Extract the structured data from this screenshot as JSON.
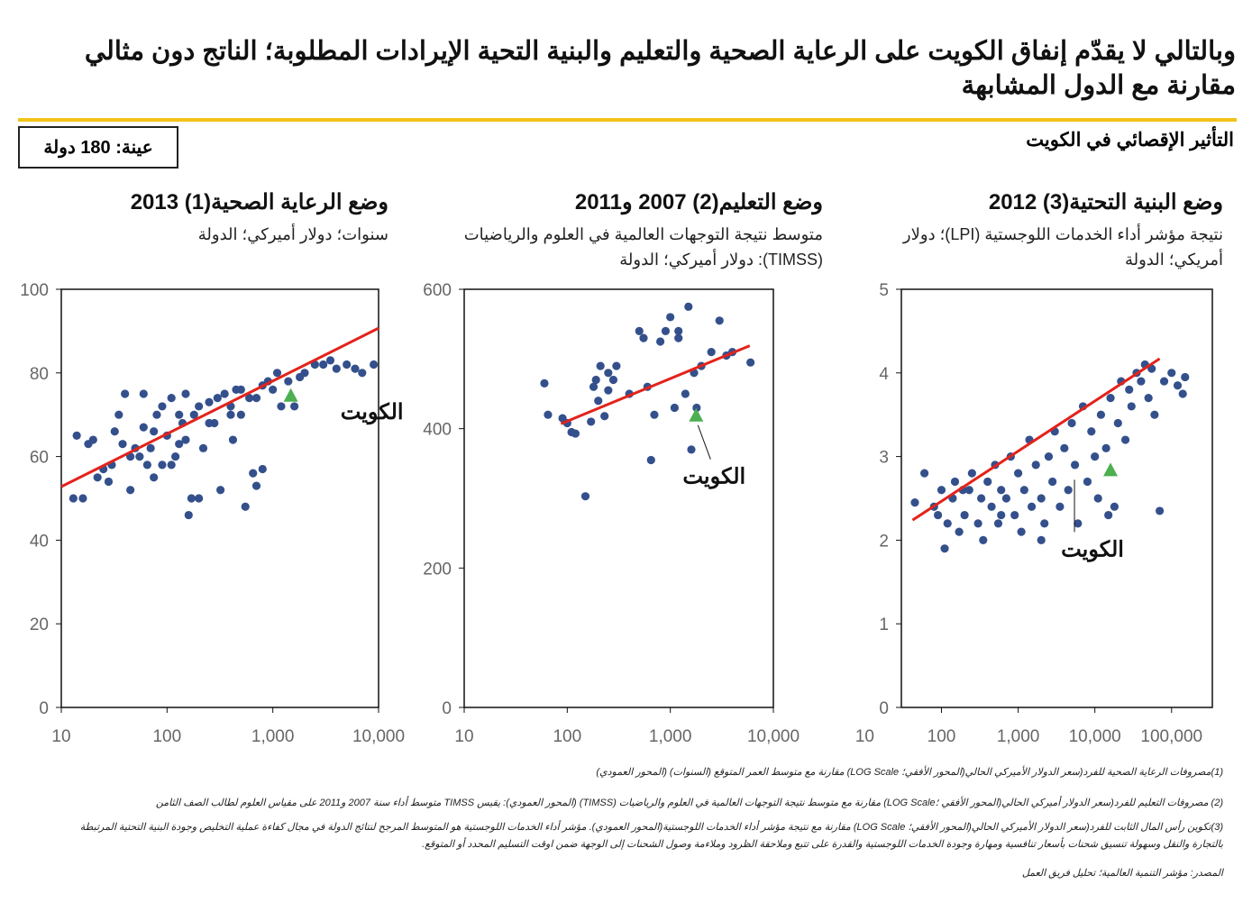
{
  "header": {
    "title": "وبالتالي لا يقدّم إنفاق الكويت على الرعاية الصحية والتعليم والبنية التحية الإيرادات المطلوبة؛ الناتج دون مثالي مقارنة مع الدول المشابهة",
    "sample": "عينة: 180 دولة",
    "section": "التأثير الإقصائي في الكويت"
  },
  "colors": {
    "accent": "#f2c318",
    "points": "#34508c",
    "trend": "#e3231b",
    "kuwait": "#4caf50"
  },
  "chart_data": [
    {
      "type": "scatter",
      "title": "وضع الرعاية الصحية(1)  2013",
      "subtitle": "سنوات؛ دولار أميركي؛ الدولة",
      "xscale": "log",
      "xlim": [
        10,
        10000
      ],
      "ylim": [
        0,
        100
      ],
      "xticks": [
        10,
        100,
        1000,
        10000
      ],
      "xtick_labels": [
        "10",
        "100",
        "1,000",
        "10,000"
      ],
      "yticks": [
        0,
        20,
        40,
        60,
        80,
        100
      ],
      "ytick_labels": [
        "0",
        "20",
        "40",
        "60",
        "80",
        "100"
      ],
      "trend": [
        [
          10,
          52.8
        ],
        [
          10000,
          90.7
        ]
      ],
      "kuwait": {
        "label": "الكويت",
        "x": 1480,
        "y": 74.4
      },
      "points": [
        [
          13,
          50
        ],
        [
          16,
          50
        ],
        [
          14,
          65
        ],
        [
          18,
          63
        ],
        [
          20,
          64
        ],
        [
          22,
          55
        ],
        [
          25,
          57
        ],
        [
          30,
          58
        ],
        [
          32,
          66
        ],
        [
          35,
          70
        ],
        [
          38,
          63
        ],
        [
          40,
          75
        ],
        [
          45,
          52
        ],
        [
          50,
          62
        ],
        [
          55,
          60
        ],
        [
          60,
          67
        ],
        [
          65,
          58
        ],
        [
          70,
          62
        ],
        [
          75,
          55
        ],
        [
          80,
          70
        ],
        [
          90,
          72
        ],
        [
          100,
          65
        ],
        [
          110,
          74
        ],
        [
          120,
          60
        ],
        [
          130,
          63
        ],
        [
          140,
          68
        ],
        [
          150,
          75
        ],
        [
          160,
          46
        ],
        [
          170,
          50
        ],
        [
          180,
          70
        ],
        [
          200,
          72
        ],
        [
          220,
          62
        ],
        [
          250,
          73
        ],
        [
          280,
          68
        ],
        [
          300,
          74
        ],
        [
          320,
          52
        ],
        [
          350,
          75
        ],
        [
          400,
          72
        ],
        [
          420,
          64
        ],
        [
          450,
          76
        ],
        [
          500,
          70
        ],
        [
          550,
          48
        ],
        [
          600,
          74
        ],
        [
          650,
          56
        ],
        [
          700,
          74
        ],
        [
          800,
          57
        ],
        [
          900,
          78
        ],
        [
          1000,
          76
        ],
        [
          1100,
          80
        ],
        [
          1200,
          72
        ],
        [
          1400,
          78
        ],
        [
          1600,
          72
        ],
        [
          1800,
          79
        ],
        [
          2000,
          80
        ],
        [
          2500,
          82
        ],
        [
          3000,
          82
        ],
        [
          3500,
          83
        ],
        [
          4000,
          81
        ],
        [
          5000,
          82
        ],
        [
          6000,
          81
        ],
        [
          7000,
          80
        ],
        [
          9000,
          82
        ],
        [
          200,
          50
        ],
        [
          110,
          58
        ],
        [
          60,
          75
        ],
        [
          700,
          53
        ],
        [
          130,
          70
        ],
        [
          250,
          68
        ],
        [
          400,
          70
        ],
        [
          90,
          58
        ],
        [
          75,
          66
        ],
        [
          150,
          64
        ],
        [
          45,
          60
        ],
        [
          28,
          54
        ],
        [
          500,
          76
        ],
        [
          800,
          77
        ]
      ]
    },
    {
      "type": "scatter",
      "title": "وضع التعليم(2)  2007 و2011",
      "subtitle": "متوسط نتيجة التوجهات العالمية في العلوم والرياضيات (TIMSS): دولار أميركي؛ الدولة",
      "xscale": "log",
      "xlim": [
        10,
        10000
      ],
      "ylim": [
        0,
        600
      ],
      "xticks": [
        10,
        100,
        1000,
        10000
      ],
      "xtick_labels": [
        "10",
        "100",
        "1,000",
        "10,000"
      ],
      "yticks": [
        0,
        200,
        400,
        600
      ],
      "ytick_labels": [
        "0",
        "200",
        "400",
        "600"
      ],
      "trend": [
        [
          87,
          407
        ],
        [
          5900,
          519
        ]
      ],
      "kuwait": {
        "label": "الكويت",
        "x": 1780,
        "y": 418
      },
      "points": [
        [
          60,
          465
        ],
        [
          65,
          420
        ],
        [
          90,
          415
        ],
        [
          100,
          408
        ],
        [
          110,
          395
        ],
        [
          120,
          393
        ],
        [
          150,
          303
        ],
        [
          170,
          410
        ],
        [
          180,
          460
        ],
        [
          190,
          470
        ],
        [
          200,
          440
        ],
        [
          210,
          490
        ],
        [
          230,
          418
        ],
        [
          250,
          480
        ],
        [
          280,
          470
        ],
        [
          300,
          490
        ],
        [
          400,
          450
        ],
        [
          500,
          540
        ],
        [
          550,
          530
        ],
        [
          600,
          460
        ],
        [
          650,
          355
        ],
        [
          700,
          420
        ],
        [
          800,
          525
        ],
        [
          900,
          540
        ],
        [
          1000,
          560
        ],
        [
          1100,
          430
        ],
        [
          1200,
          530
        ],
        [
          1400,
          450
        ],
        [
          1500,
          575
        ],
        [
          1600,
          370
        ],
        [
          1700,
          480
        ],
        [
          1800,
          430
        ],
        [
          2000,
          490
        ],
        [
          2500,
          510
        ],
        [
          3000,
          555
        ],
        [
          3500,
          505
        ],
        [
          4000,
          510
        ],
        [
          6000,
          495
        ],
        [
          1200,
          540
        ],
        [
          250,
          455
        ]
      ]
    },
    {
      "type": "scatter",
      "title": "وضع البنية التحتية(3)  2012",
      "subtitle": "نتيجة مؤشر أداء الخدمات اللوجستية (LPI)؛ دولار أمريكي؛ الدولة",
      "xscale": "log",
      "xlim": [
        30,
        340000
      ],
      "ylim": [
        0,
        5
      ],
      "xticks": [
        10,
        100,
        1000,
        10000,
        100000
      ],
      "xtick_labels": [
        "10",
        "100",
        "1,000",
        "10,000",
        "100,000"
      ],
      "yticks": [
        0,
        1,
        2,
        3,
        4,
        5
      ],
      "ytick_labels": [
        "0",
        "1",
        "2",
        "3",
        "4",
        "5"
      ],
      "trend": [
        [
          42,
          2.24
        ],
        [
          70000,
          4.17
        ]
      ],
      "kuwait": {
        "label": "الكويت",
        "x": 16000,
        "y": 2.83
      },
      "points": [
        [
          45,
          2.45
        ],
        [
          60,
          2.8
        ],
        [
          80,
          2.4
        ],
        [
          90,
          2.3
        ],
        [
          100,
          2.6
        ],
        [
          110,
          1.9
        ],
        [
          120,
          2.2
        ],
        [
          140,
          2.5
        ],
        [
          150,
          2.7
        ],
        [
          170,
          2.1
        ],
        [
          190,
          2.6
        ],
        [
          200,
          2.3
        ],
        [
          230,
          2.6
        ],
        [
          250,
          2.8
        ],
        [
          300,
          2.2
        ],
        [
          330,
          2.5
        ],
        [
          350,
          2.0
        ],
        [
          400,
          2.7
        ],
        [
          450,
          2.4
        ],
        [
          500,
          2.9
        ],
        [
          550,
          2.2
        ],
        [
          600,
          2.6
        ],
        [
          700,
          2.5
        ],
        [
          800,
          3.0
        ],
        [
          900,
          2.3
        ],
        [
          1000,
          2.8
        ],
        [
          1100,
          2.1
        ],
        [
          1200,
          2.6
        ],
        [
          1400,
          3.2
        ],
        [
          1500,
          2.4
        ],
        [
          1700,
          2.9
        ],
        [
          2000,
          2.5
        ],
        [
          2200,
          2.2
        ],
        [
          2500,
          3.0
        ],
        [
          2800,
          2.7
        ],
        [
          3000,
          3.3
        ],
        [
          3500,
          2.4
        ],
        [
          4000,
          3.1
        ],
        [
          4500,
          2.6
        ],
        [
          5000,
          3.4
        ],
        [
          5500,
          2.9
        ],
        [
          6000,
          2.2
        ],
        [
          7000,
          3.6
        ],
        [
          8000,
          2.7
        ],
        [
          9000,
          3.3
        ],
        [
          10000,
          3.0
        ],
        [
          11000,
          2.5
        ],
        [
          12000,
          3.5
        ],
        [
          14000,
          3.1
        ],
        [
          16000,
          3.7
        ],
        [
          18000,
          2.4
        ],
        [
          20000,
          3.4
        ],
        [
          22000,
          3.9
        ],
        [
          25000,
          3.2
        ],
        [
          28000,
          3.8
        ],
        [
          30000,
          3.6
        ],
        [
          35000,
          4.0
        ],
        [
          40000,
          3.9
        ],
        [
          45000,
          4.1
        ],
        [
          50000,
          3.7
        ],
        [
          55000,
          4.05
        ],
        [
          60000,
          3.5
        ],
        [
          70000,
          2.35
        ],
        [
          80000,
          3.9
        ],
        [
          100000,
          4.0
        ],
        [
          120000,
          3.85
        ],
        [
          150000,
          3.95
        ],
        [
          140000,
          3.75
        ],
        [
          600,
          2.3
        ],
        [
          2000,
          2.0
        ],
        [
          15000,
          2.3
        ]
      ]
    }
  ],
  "footnotes": [
    "(1)مصروفات الرعاية الصحية للفرد(سعر الدولار الأميركي الحالي(المحور الأفقي؛ LOG Scale) مقارنة مع متوسط العمر المتوقع (السنوات) (المحور العمودي)",
    "(2) مصروفات التعليم للفرد(سعر الدولار أميركي الحالي(المحور الأفقي ؛LOG Scale) مقارنة مع متوسط نتيجة التوجهات العالمية في العلوم والرياضيات (TIMSS) (المحور العمودي): يقيس TIMSS متوسط أداء سنة 2007 و2011 على مقياس العلوم لطالب الصف الثامن",
    "(3)تكوين رأس المال الثابت للفرد(سعر الدولار الأميركي الحالي(المحور الأفقي؛ LOG Scale) مقارنة مع نتيجة مؤشر أداء الخدمات اللوجستية(المحور العمودي). مؤشر أداء الخدمات اللوجستية هو المتوسط المرجح لنتائج الدولة في مجال كفاءة عملية التخليص وجودة البنية التحتية المرتبطة",
    "بالتجارة والنقل وسهولة تنسيق شحنات بأسعار تنافسية ومهارة وجودة الخدمات اللوجستية والقدرة على تتبع وملاحقة الظرود وملاءمة وصول الشحنات إلى الوجهة ضمن اوقت التسليم المحدد أو المتوقع.",
    "المصدر: مؤشر التنمية العالمية؛ تحليل فريق العمل"
  ]
}
